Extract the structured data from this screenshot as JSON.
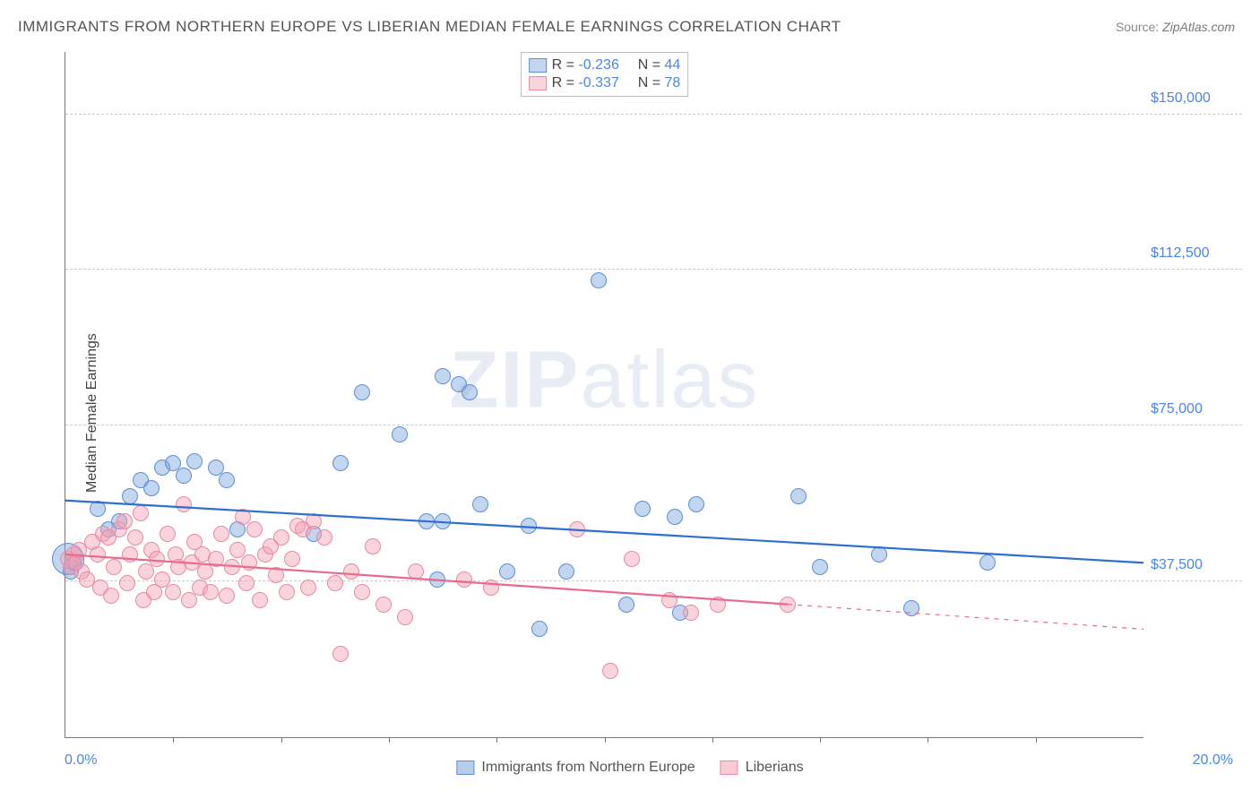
{
  "title": "IMMIGRANTS FROM NORTHERN EUROPE VS LIBERIAN MEDIAN FEMALE EARNINGS CORRELATION CHART",
  "source_label": "Source:",
  "source_value": "ZipAtlas.com",
  "ylabel": "Median Female Earnings",
  "watermark_a": "ZIP",
  "watermark_b": "atlas",
  "chart": {
    "type": "scatter",
    "xlim": [
      0,
      20
    ],
    "ylim": [
      0,
      165000
    ],
    "x_tick_step_pct": 10,
    "y_ticks": [
      37500,
      75000,
      112500,
      150000
    ],
    "y_tick_labels": [
      "$37,500",
      "$75,000",
      "$112,500",
      "$150,000"
    ],
    "x_label_min": "0.0%",
    "x_label_max": "20.0%",
    "grid_color": "#cccccc",
    "axis_color": "#777777",
    "background_color": "#ffffff",
    "marker_radius": 9,
    "marker_stroke_width": 1.5,
    "line_width": 2.2,
    "series": [
      {
        "name": "Immigrants from Northern Europe",
        "key": "northern",
        "fill": "rgba(120,165,220,0.45)",
        "stroke": "#5b8fd6",
        "line_color": "#2f6fd0",
        "R": "-0.236",
        "N": "44",
        "trend": {
          "x1": 0,
          "y1": 57000,
          "x2": 20,
          "y2": 42000,
          "dash_after_x": 20
        },
        "points": [
          {
            "x": 0.05,
            "y": 43000,
            "r": 18
          },
          {
            "x": 0.1,
            "y": 40000
          },
          {
            "x": 0.15,
            "y": 42000
          },
          {
            "x": 0.6,
            "y": 55000
          },
          {
            "x": 0.8,
            "y": 50000
          },
          {
            "x": 1.0,
            "y": 52000
          },
          {
            "x": 1.2,
            "y": 58000
          },
          {
            "x": 1.4,
            "y": 62000
          },
          {
            "x": 1.6,
            "y": 60000
          },
          {
            "x": 1.8,
            "y": 65000
          },
          {
            "x": 2.0,
            "y": 66000
          },
          {
            "x": 2.2,
            "y": 63000
          },
          {
            "x": 2.4,
            "y": 66500
          },
          {
            "x": 2.8,
            "y": 65000
          },
          {
            "x": 3.0,
            "y": 62000
          },
          {
            "x": 3.2,
            "y": 50000
          },
          {
            "x": 4.6,
            "y": 49000
          },
          {
            "x": 5.1,
            "y": 66000
          },
          {
            "x": 5.5,
            "y": 83000
          },
          {
            "x": 6.2,
            "y": 73000
          },
          {
            "x": 6.7,
            "y": 52000
          },
          {
            "x": 6.9,
            "y": 38000
          },
          {
            "x": 7.0,
            "y": 87000
          },
          {
            "x": 7.3,
            "y": 85000
          },
          {
            "x": 7.0,
            "y": 52000
          },
          {
            "x": 7.5,
            "y": 83000
          },
          {
            "x": 7.7,
            "y": 56000
          },
          {
            "x": 8.2,
            "y": 40000
          },
          {
            "x": 8.6,
            "y": 51000
          },
          {
            "x": 8.8,
            "y": 26000
          },
          {
            "x": 9.3,
            "y": 40000
          },
          {
            "x": 9.9,
            "y": 110000
          },
          {
            "x": 10.4,
            "y": 32000
          },
          {
            "x": 10.7,
            "y": 55000
          },
          {
            "x": 11.3,
            "y": 53000
          },
          {
            "x": 11.4,
            "y": 30000
          },
          {
            "x": 11.7,
            "y": 56000
          },
          {
            "x": 13.6,
            "y": 58000
          },
          {
            "x": 14.0,
            "y": 41000
          },
          {
            "x": 15.1,
            "y": 44000
          },
          {
            "x": 15.7,
            "y": 31000
          },
          {
            "x": 17.1,
            "y": 42000
          }
        ]
      },
      {
        "name": "Liberians",
        "key": "liberians",
        "fill": "rgba(245,160,180,0.45)",
        "stroke": "#e88aa3",
        "line_color": "#e86a8f",
        "R": "-0.337",
        "N": "78",
        "trend": {
          "x1": 0,
          "y1": 44000,
          "x2": 13.4,
          "y2": 32000,
          "dash_after_x": 13.4,
          "x3": 20,
          "y3": 26000
        },
        "points": [
          {
            "x": 0.05,
            "y": 43000
          },
          {
            "x": 0.1,
            "y": 41000
          },
          {
            "x": 0.15,
            "y": 44000
          },
          {
            "x": 0.2,
            "y": 42000
          },
          {
            "x": 0.25,
            "y": 45000
          },
          {
            "x": 0.3,
            "y": 40000
          },
          {
            "x": 0.4,
            "y": 38000
          },
          {
            "x": 0.5,
            "y": 47000
          },
          {
            "x": 0.6,
            "y": 44000
          },
          {
            "x": 0.65,
            "y": 36000
          },
          {
            "x": 0.7,
            "y": 49000
          },
          {
            "x": 0.8,
            "y": 48000
          },
          {
            "x": 0.85,
            "y": 34000
          },
          {
            "x": 0.9,
            "y": 41000
          },
          {
            "x": 1.0,
            "y": 50000
          },
          {
            "x": 1.1,
            "y": 52000
          },
          {
            "x": 1.15,
            "y": 37000
          },
          {
            "x": 1.2,
            "y": 44000
          },
          {
            "x": 1.3,
            "y": 48000
          },
          {
            "x": 1.4,
            "y": 54000
          },
          {
            "x": 1.45,
            "y": 33000
          },
          {
            "x": 1.5,
            "y": 40000
          },
          {
            "x": 1.6,
            "y": 45000
          },
          {
            "x": 1.65,
            "y": 35000
          },
          {
            "x": 1.7,
            "y": 43000
          },
          {
            "x": 1.8,
            "y": 38000
          },
          {
            "x": 1.9,
            "y": 49000
          },
          {
            "x": 2.0,
            "y": 35000
          },
          {
            "x": 2.05,
            "y": 44000
          },
          {
            "x": 2.1,
            "y": 41000
          },
          {
            "x": 2.2,
            "y": 56000
          },
          {
            "x": 2.3,
            "y": 33000
          },
          {
            "x": 2.35,
            "y": 42000
          },
          {
            "x": 2.4,
            "y": 47000
          },
          {
            "x": 2.5,
            "y": 36000
          },
          {
            "x": 2.55,
            "y": 44000
          },
          {
            "x": 2.6,
            "y": 40000
          },
          {
            "x": 2.7,
            "y": 35000
          },
          {
            "x": 2.8,
            "y": 43000
          },
          {
            "x": 2.9,
            "y": 49000
          },
          {
            "x": 3.0,
            "y": 34000
          },
          {
            "x": 3.1,
            "y": 41000
          },
          {
            "x": 3.2,
            "y": 45000
          },
          {
            "x": 3.3,
            "y": 53000
          },
          {
            "x": 3.35,
            "y": 37000
          },
          {
            "x": 3.4,
            "y": 42000
          },
          {
            "x": 3.5,
            "y": 50000
          },
          {
            "x": 3.6,
            "y": 33000
          },
          {
            "x": 3.7,
            "y": 44000
          },
          {
            "x": 3.8,
            "y": 46000
          },
          {
            "x": 3.9,
            "y": 39000
          },
          {
            "x": 4.0,
            "y": 48000
          },
          {
            "x": 4.1,
            "y": 35000
          },
          {
            "x": 4.2,
            "y": 43000
          },
          {
            "x": 4.3,
            "y": 51000
          },
          {
            "x": 4.4,
            "y": 50000
          },
          {
            "x": 4.5,
            "y": 36000
          },
          {
            "x": 4.6,
            "y": 52000
          },
          {
            "x": 4.8,
            "y": 48000
          },
          {
            "x": 5.0,
            "y": 37000
          },
          {
            "x": 5.1,
            "y": 20000
          },
          {
            "x": 5.3,
            "y": 40000
          },
          {
            "x": 5.5,
            "y": 35000
          },
          {
            "x": 5.7,
            "y": 46000
          },
          {
            "x": 5.9,
            "y": 32000
          },
          {
            "x": 6.3,
            "y": 29000
          },
          {
            "x": 6.5,
            "y": 40000
          },
          {
            "x": 7.4,
            "y": 38000
          },
          {
            "x": 7.9,
            "y": 36000
          },
          {
            "x": 9.5,
            "y": 50000
          },
          {
            "x": 10.1,
            "y": 16000
          },
          {
            "x": 10.5,
            "y": 43000
          },
          {
            "x": 11.2,
            "y": 33000
          },
          {
            "x": 11.6,
            "y": 30000
          },
          {
            "x": 12.1,
            "y": 32000
          },
          {
            "x": 13.4,
            "y": 32000
          }
        ]
      }
    ],
    "bottom_legend": [
      {
        "swatch_fill": "rgba(120,165,220,0.55)",
        "swatch_stroke": "#5b8fd6",
        "label": "Immigrants from Northern Europe"
      },
      {
        "swatch_fill": "rgba(245,160,180,0.55)",
        "swatch_stroke": "#e88aa3",
        "label": "Liberians"
      }
    ]
  }
}
